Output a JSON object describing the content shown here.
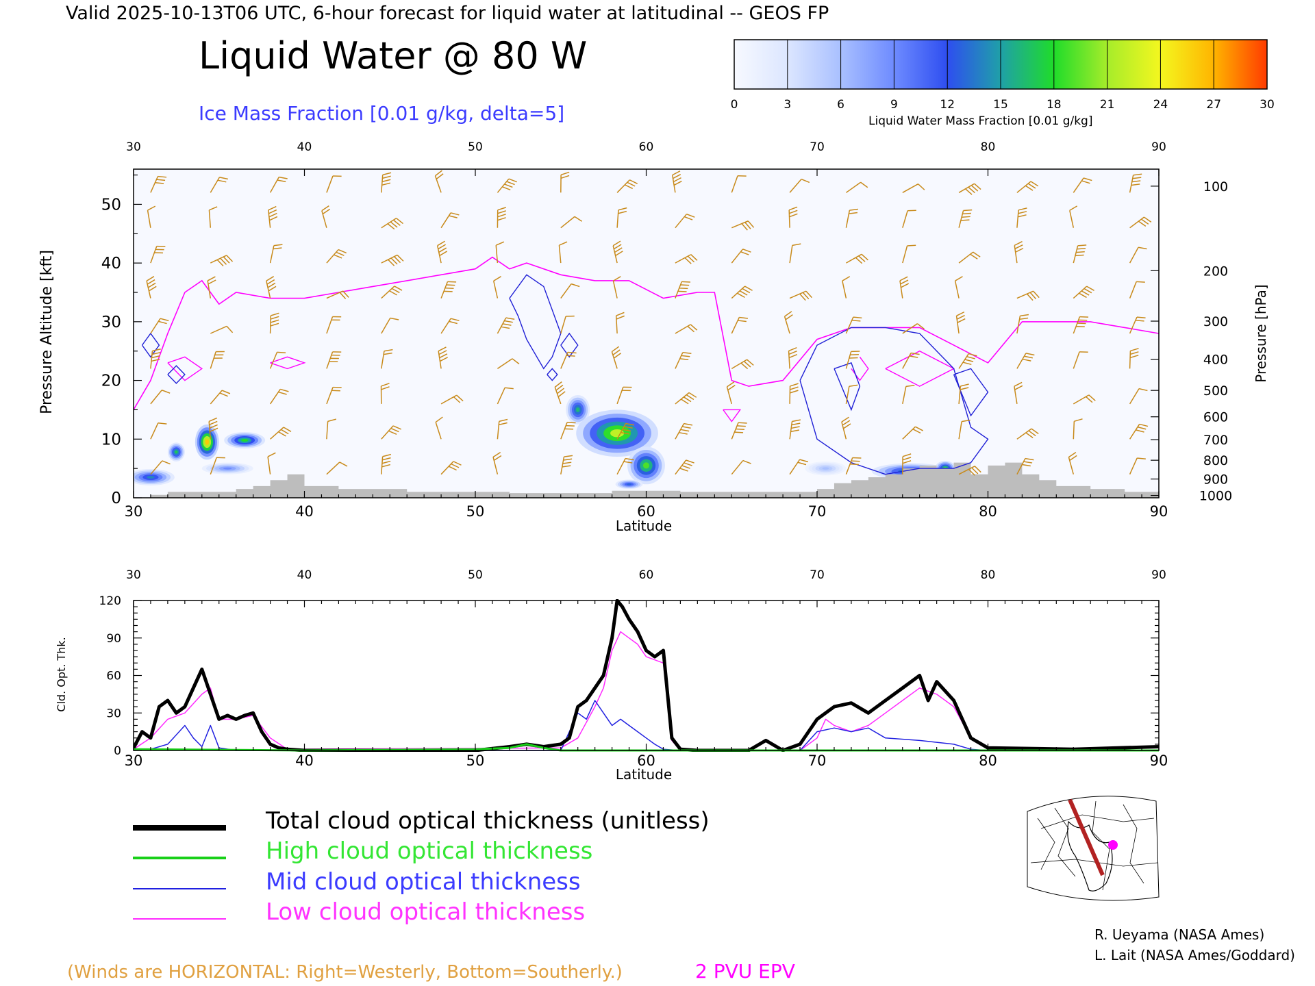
{
  "header": {
    "valid_line": "Valid 2025-10-13T06 UTC, 6-hour forecast for liquid water at latitudinal -- GEOS FP",
    "main_title": "Liquid Water @ 80 W",
    "subtitle": "Ice Mass Fraction [0.01 g/kg, delta=5]"
  },
  "colorbar": {
    "ticks": [
      "0",
      "3",
      "6",
      "9",
      "12",
      "15",
      "18",
      "21",
      "24",
      "27",
      "30"
    ],
    "label": "Liquid Water Mass Fraction [0.01 g/kg]",
    "range": [
      0,
      30
    ],
    "colors": [
      "#f7f9ff",
      "#dce6ff",
      "#a9c0ff",
      "#6e8bff",
      "#2e4ef0",
      "#1fa0a8",
      "#1fdc2a",
      "#a6ec2a",
      "#f4f71f",
      "#ffb400",
      "#ff3b00"
    ]
  },
  "colors": {
    "wind_barb": "#c88a1a",
    "epv_contour": "#ff00ff",
    "ice_contour": "#1f1fd6",
    "terrain": "#bdbdbd",
    "total": "#000000",
    "high": "#18d018",
    "mid": "#2020e0",
    "low": "#ff2aff"
  },
  "cross_section": {
    "xlabel": "Latitude",
    "ylabel_left": "Pressure Altitude [kft]",
    "ylabel_right": "Pressure [hPa]",
    "x_ticks": [
      "30",
      "40",
      "50",
      "60",
      "70",
      "80",
      "90"
    ],
    "x_range": [
      30,
      90
    ],
    "y_ticks": [
      "0",
      "10",
      "20",
      "30",
      "40",
      "50"
    ],
    "y_range": [
      0,
      56
    ],
    "pressure_labels": [
      {
        "hPa": "100",
        "kft": 53.1
      },
      {
        "hPa": "200",
        "kft": 38.7
      },
      {
        "hPa": "300",
        "kft": 30.1
      },
      {
        "hPa": "400",
        "kft": 23.6
      },
      {
        "hPa": "500",
        "kft": 18.3
      },
      {
        "hPa": "600",
        "kft": 13.8
      },
      {
        "hPa": "700",
        "kft": 9.9
      },
      {
        "hPa": "800",
        "kft": 6.4
      },
      {
        "hPa": "900",
        "kft": 3.2
      },
      {
        "hPa": "1000",
        "kft": 0.4
      }
    ],
    "terrain": {
      "lat": [
        30,
        31,
        32,
        33,
        34,
        35,
        36,
        37,
        38,
        39,
        40,
        42,
        44,
        46,
        48,
        50,
        52,
        54,
        56,
        58,
        60,
        62,
        64,
        66,
        68,
        70,
        71,
        72,
        73,
        74,
        75,
        76,
        77,
        78,
        79,
        80,
        81,
        82,
        83,
        84,
        86,
        88,
        90
      ],
      "kft": [
        0,
        0.5,
        1,
        1,
        1,
        1,
        1.5,
        2,
        3,
        4,
        2,
        1.5,
        1.5,
        1,
        1,
        1,
        0.8,
        0.8,
        0.8,
        1.2,
        1.2,
        1,
        1,
        1,
        1,
        1.5,
        2.5,
        3,
        3.5,
        4,
        5,
        5.5,
        5,
        6,
        4,
        5.5,
        6,
        4,
        3,
        2,
        1.5,
        1,
        0.5
      ]
    },
    "epv_2pvu": {
      "lat": [
        30,
        31,
        32,
        33,
        34,
        35,
        36,
        38,
        40,
        42,
        44,
        46,
        48,
        50,
        51,
        52,
        53,
        55,
        57,
        59,
        61,
        63,
        64,
        65,
        66,
        68,
        70,
        72,
        74,
        76,
        78,
        80,
        82,
        84,
        86,
        88,
        90
      ],
      "kft": [
        15,
        20,
        28,
        35,
        37,
        33,
        35,
        34,
        34,
        35,
        36,
        37,
        38,
        39,
        41,
        39,
        40,
        38,
        37,
        37,
        34,
        35,
        35,
        20,
        19,
        20,
        27,
        29,
        29,
        29,
        26,
        23,
        30,
        30,
        30,
        29,
        28
      ]
    },
    "liquid_blobs": [
      {
        "lat": 31.0,
        "kft": 3.5,
        "w": 1.4,
        "h": 1.4,
        "v": 14
      },
      {
        "lat": 32.5,
        "kft": 7.8,
        "w": 0.5,
        "h": 1.6,
        "v": 17
      },
      {
        "lat": 34.3,
        "kft": 9.5,
        "w": 0.7,
        "h": 3.0,
        "v": 26
      },
      {
        "lat": 36.5,
        "kft": 9.8,
        "w": 1.2,
        "h": 1.4,
        "v": 18
      },
      {
        "lat": 35.5,
        "kft": 5.0,
        "w": 1.5,
        "h": 1.0,
        "v": 9
      },
      {
        "lat": 56.0,
        "kft": 15.0,
        "w": 0.7,
        "h": 2.5,
        "v": 16
      },
      {
        "lat": 58.3,
        "kft": 11.0,
        "w": 2.4,
        "h": 4.0,
        "v": 22
      },
      {
        "lat": 60.0,
        "kft": 5.5,
        "w": 1.1,
        "h": 3.2,
        "v": 19
      },
      {
        "lat": 59.0,
        "kft": 2.3,
        "w": 0.8,
        "h": 0.8,
        "v": 13
      },
      {
        "lat": 75.5,
        "kft": 4.5,
        "w": 2.3,
        "h": 1.4,
        "v": 16
      },
      {
        "lat": 77.5,
        "kft": 5.0,
        "w": 0.6,
        "h": 1.3,
        "v": 19
      },
      {
        "lat": 70.5,
        "kft": 5.0,
        "w": 1.2,
        "h": 1.2,
        "v": 6
      }
    ],
    "ice_contours": [
      {
        "lat": [
          52,
          53,
          54,
          55,
          54.5,
          54,
          53,
          52.5,
          52
        ],
        "kft": [
          34,
          38,
          36,
          28,
          24,
          22,
          27,
          31,
          34
        ]
      },
      {
        "lat": [
          30.5,
          31,
          31.5,
          31,
          30.5
        ],
        "kft": [
          26,
          28,
          26,
          24,
          26
        ]
      },
      {
        "lat": [
          32,
          32.5,
          33,
          32.5,
          32
        ],
        "kft": [
          21,
          22.5,
          21,
          19.5,
          21
        ]
      },
      {
        "lat": [
          55,
          55.5,
          56,
          55.5,
          55
        ],
        "kft": [
          26,
          28,
          26,
          24,
          26
        ]
      },
      {
        "lat": [
          54.2,
          54.5,
          54.8,
          54.5,
          54.2
        ],
        "kft": [
          21,
          22,
          21,
          20,
          21
        ]
      },
      {
        "lat": [
          69,
          70,
          72,
          74,
          76,
          78,
          79,
          80,
          79,
          78,
          76,
          74,
          72,
          70,
          69
        ],
        "kft": [
          20,
          26,
          29,
          29,
          28,
          22,
          12,
          10,
          6,
          5,
          5,
          4,
          6,
          10,
          20
        ]
      },
      {
        "lat": [
          78,
          79,
          80,
          79,
          78
        ],
        "kft": [
          21,
          22,
          18,
          14,
          21
        ]
      },
      {
        "lat": [
          71,
          72,
          72.5,
          72,
          71
        ],
        "kft": [
          22,
          23,
          19,
          15,
          22
        ]
      }
    ],
    "epv_islands": [
      {
        "lat": [
          38,
          39,
          40,
          39,
          38
        ],
        "kft": [
          23,
          24,
          23,
          22,
          23
        ]
      },
      {
        "lat": [
          32,
          33,
          34,
          33,
          32
        ],
        "kft": [
          23,
          24,
          22,
          20,
          23
        ]
      },
      {
        "lat": [
          74,
          76,
          78,
          76,
          74
        ],
        "kft": [
          22,
          25,
          22,
          19,
          22
        ]
      },
      {
        "lat": [
          64.5,
          65.5,
          65,
          64.5
        ],
        "kft": [
          15,
          15,
          13,
          15
        ]
      },
      {
        "lat": [
          72.5,
          73,
          72.5,
          72
        ],
        "kft": [
          24,
          22,
          20,
          22
        ]
      }
    ],
    "wind_barbs": {
      "lats": [
        31,
        34.5,
        38,
        41.3,
        44.5,
        48,
        51.3,
        55,
        58.3,
        61.7,
        65,
        68.4,
        71.7,
        75,
        78.3,
        81.7,
        85,
        88.3
      ],
      "levels_kft": [
        52,
        46,
        40,
        34,
        28,
        22,
        16,
        10,
        4
      ]
    }
  },
  "cot_panel": {
    "xlabel": "Latitude",
    "ylabel": "Cld. Opt. Thk.",
    "x_ticks": [
      "30",
      "40",
      "50",
      "60",
      "70",
      "80",
      "90"
    ],
    "x_range": [
      30,
      90
    ],
    "y_ticks": [
      "0",
      "30",
      "60",
      "90",
      "120"
    ],
    "y_range": [
      0,
      120
    ],
    "series": [
      {
        "key": "total",
        "width": 5,
        "lat": [
          30,
          30.5,
          31,
          31.5,
          32,
          32.5,
          33,
          33.5,
          34,
          34.5,
          35,
          35.5,
          36,
          36.5,
          37,
          37.5,
          38,
          38.5,
          39,
          40,
          45,
          50,
          52,
          53,
          54,
          55,
          55.5,
          56,
          56.5,
          57,
          57.5,
          58,
          58.3,
          58.6,
          59,
          59.5,
          60,
          60.5,
          61,
          61.5,
          62,
          63,
          66,
          67,
          68,
          69,
          70,
          71,
          72,
          73,
          74,
          75,
          76,
          76.5,
          77,
          78,
          79,
          80,
          85,
          90
        ],
        "values": [
          2,
          15,
          10,
          35,
          40,
          30,
          35,
          50,
          65,
          45,
          25,
          28,
          25,
          28,
          30,
          15,
          5,
          2,
          1,
          0,
          0,
          0,
          3,
          5,
          3,
          5,
          10,
          35,
          40,
          50,
          60,
          90,
          120,
          115,
          105,
          95,
          80,
          75,
          80,
          10,
          1,
          0,
          0,
          8,
          0,
          5,
          25,
          35,
          38,
          30,
          40,
          50,
          60,
          40,
          55,
          40,
          10,
          2,
          1,
          3
        ]
      },
      {
        "key": "high",
        "width": 3,
        "lat": [
          30,
          40,
          50,
          52,
          53,
          54,
          55,
          60,
          70,
          80,
          90
        ],
        "values": [
          1,
          0,
          1,
          2,
          5,
          2,
          0,
          0,
          0,
          0,
          0
        ]
      },
      {
        "key": "mid",
        "width": 1.5,
        "lat": [
          30,
          31,
          32,
          33,
          33.5,
          34,
          34.5,
          35,
          36,
          55,
          56,
          56.5,
          57,
          57.5,
          58,
          58.5,
          59,
          59.5,
          60,
          60.5,
          61,
          62,
          69,
          70,
          71,
          72,
          73,
          74,
          76,
          78,
          79,
          80,
          90
        ],
        "values": [
          0,
          1,
          5,
          20,
          10,
          3,
          20,
          2,
          0,
          0,
          30,
          25,
          40,
          30,
          20,
          25,
          20,
          15,
          10,
          5,
          1,
          0,
          0,
          15,
          18,
          15,
          18,
          10,
          8,
          5,
          1,
          0,
          0
        ]
      },
      {
        "key": "low",
        "width": 1.5,
        "lat": [
          30,
          31,
          32,
          33,
          34,
          34.5,
          35,
          36,
          37,
          38,
          39,
          55,
          56,
          57,
          57.5,
          58,
          58.5,
          59,
          59.5,
          60,
          61,
          61.5,
          62,
          69,
          70,
          70.5,
          71,
          72,
          73,
          74,
          75,
          76,
          77,
          78,
          79,
          80,
          90
        ],
        "values": [
          1,
          10,
          25,
          30,
          45,
          50,
          25,
          25,
          28,
          10,
          1,
          2,
          10,
          35,
          50,
          80,
          95,
          90,
          85,
          75,
          70,
          8,
          0,
          0,
          10,
          25,
          20,
          15,
          20,
          30,
          40,
          50,
          45,
          35,
          10,
          1,
          2
        ]
      }
    ]
  },
  "legend": {
    "total": "Total cloud optical thickness (unitless)",
    "high": "High cloud optical thickness",
    "mid": "Mid cloud optical thickness",
    "low": "Low cloud optical thickness"
  },
  "footer": {
    "winds_note": "(Winds are HORIZONTAL: Right=Westerly, Bottom=Southerly.)",
    "epv_label": "2 PVU EPV",
    "credit_1": "R. Ueyama (NASA Ames)",
    "credit_2": "L. Lait (NASA Ames/Goddard)"
  }
}
